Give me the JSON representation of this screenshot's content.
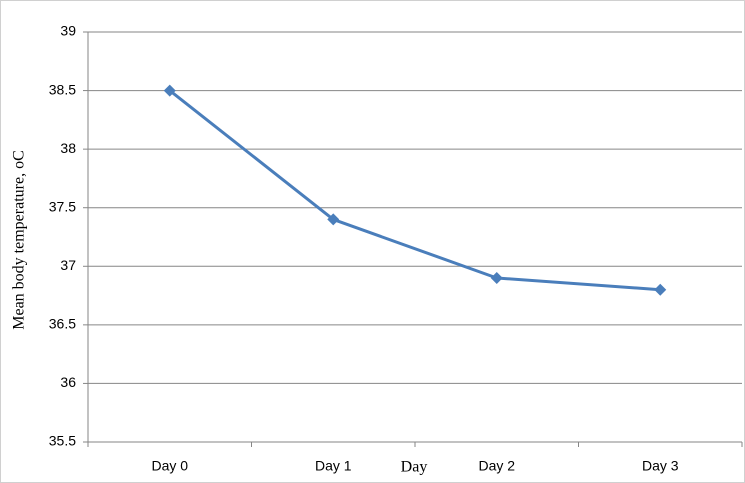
{
  "chart_data": {
    "type": "line",
    "y_label": "Mean body temperature, oC",
    "x_label": "Day",
    "categories": [
      "Day 0",
      "Day 1",
      "Day 2",
      "Day 3"
    ],
    "values": [
      38.5,
      37.4,
      36.9,
      36.8
    ],
    "color": "#4a7ebb",
    "ylim": [
      35.5,
      39
    ],
    "yticks": [
      35.5,
      36,
      36.5,
      37,
      37.5,
      38,
      38.5,
      39
    ],
    "grid": true
  }
}
